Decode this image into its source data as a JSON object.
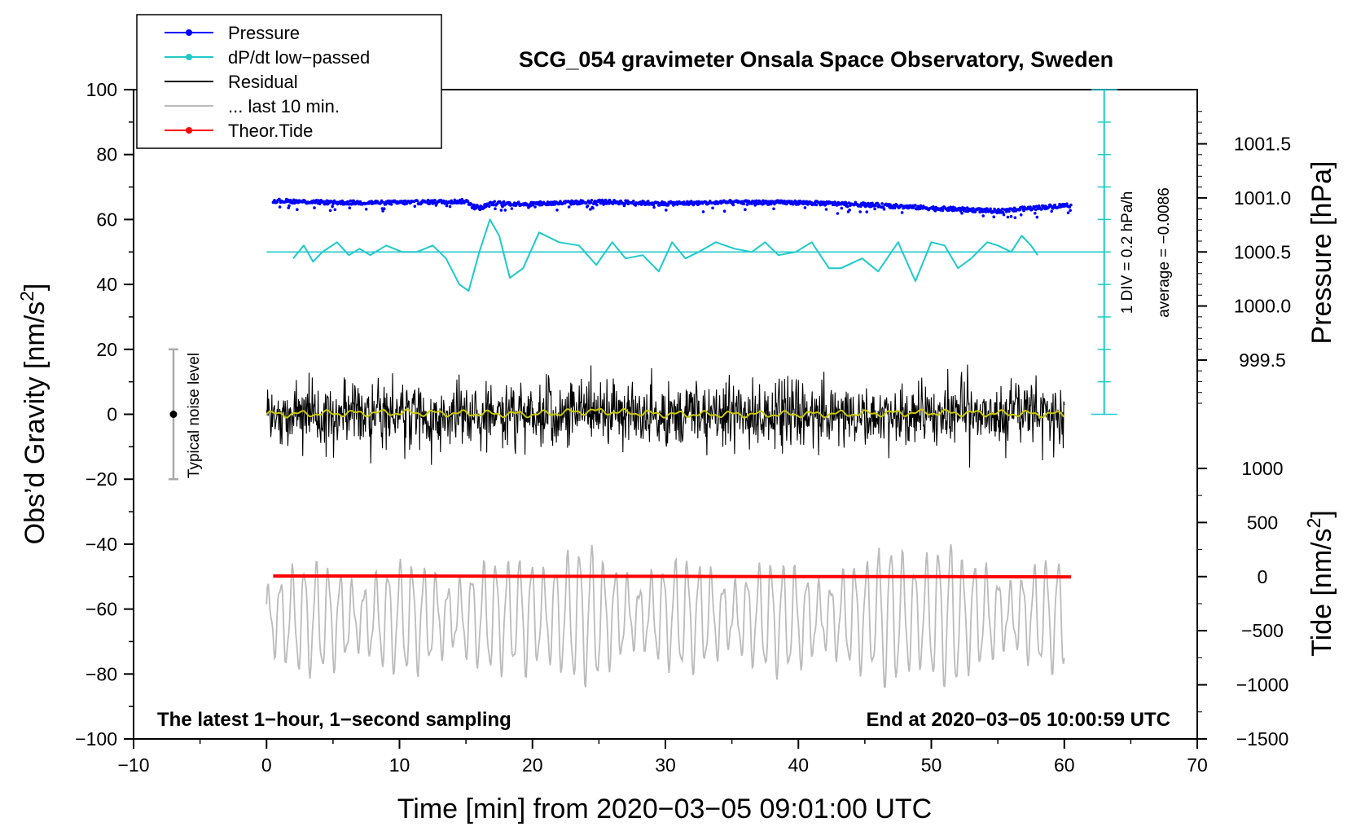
{
  "chart_data": {
    "type": "line",
    "title": "SCG_054 gravimeter Onsala Space Observatory, Sweden",
    "xlabel": "Time [min] from 2020−03−05 09:01:00 UTC",
    "ylabel_left": "Obs’d Gravity [nm/s",
    "ylabel_left_sup": "2",
    "ylabel_left_end": "]",
    "ylabel_right_pressure": "Pressure [hPa]",
    "ylabel_right_tide": "Tide [nm/s",
    "ylabel_right_tide_sup": "2",
    "ylabel_right_tide_end": "]",
    "xlim": [
      -10,
      70
    ],
    "ylim": [
      -100,
      100
    ],
    "x_ticks": [
      "−10",
      "0",
      "10",
      "20",
      "30",
      "40",
      "50",
      "60",
      "70"
    ],
    "x_tick_values": [
      -10,
      0,
      10,
      20,
      30,
      40,
      50,
      60,
      70
    ],
    "y_ticks": [
      "100",
      "80",
      "60",
      "40",
      "20",
      "0",
      "−20",
      "−40",
      "−60",
      "−80",
      "−100"
    ],
    "y_tick_values": [
      100,
      80,
      60,
      40,
      20,
      0,
      -20,
      -40,
      -60,
      -80,
      -100
    ],
    "pressure_axis": {
      "ticks": [
        "1001.5",
        "1001.0",
        "1000.5",
        "1000.0",
        "999.5"
      ],
      "tick_values": [
        1001.5,
        1001.0,
        1000.5,
        1000.0,
        999.5
      ],
      "gravity_at_1000_5": 50,
      "gravity_per_hpa": 33.3
    },
    "tide_axis": {
      "ticks": [
        "1000",
        "500",
        "0",
        "−500",
        "−1000",
        "−1500"
      ],
      "tick_values": [
        1000,
        500,
        0,
        -500,
        -1000,
        -1500
      ],
      "gravity_at_0": -50,
      "gravity_per_unit": 0.03333
    },
    "legend": {
      "placement": "top-left",
      "entries": [
        {
          "label": "Pressure",
          "color": "#0000ff",
          "marker": true
        },
        {
          "label": "dP/dt low−passed",
          "color": "#1fc9c9",
          "marker": true
        },
        {
          "label": "Residual",
          "color": "#000000",
          "marker": false
        },
        {
          "label": "... last 10 min.",
          "color": "#bbbbbb",
          "marker": false
        },
        {
          "label": "Theor.Tide",
          "color": "#ff0000",
          "marker": true
        }
      ]
    },
    "series": [
      {
        "name": "Pressure",
        "color": "#0000ff",
        "x": [
          0.5,
          5,
          10,
          15,
          16,
          17,
          20,
          25,
          30,
          35,
          40,
          45,
          50,
          55,
          60.5
        ],
        "y": [
          65.8,
          65.2,
          65.2,
          65.6,
          63.5,
          65.0,
          64.8,
          65.5,
          64.9,
          65.3,
          65.2,
          64.6,
          63.5,
          62.6,
          64.5
        ]
      },
      {
        "name": "dP/dt low−passed",
        "color": "#1fc9c9",
        "x": [
          2,
          2.8,
          3.5,
          4.2,
          5.3,
          6.2,
          7.0,
          7.8,
          9.0,
          10.2,
          11.3,
          12.5,
          13.5,
          14.5,
          15.2,
          16.0,
          16.8,
          17.5,
          18.3,
          19.3,
          20.5,
          22.0,
          23.5,
          24.8,
          26.0,
          27.0,
          28.3,
          29.5,
          30.5,
          31.5,
          32.5,
          33.8,
          35.2,
          36.5,
          37.5,
          38.5,
          39.8,
          41.0,
          42.3,
          43.2,
          44.8,
          46.0,
          47.5,
          48.8,
          50.0,
          51.0,
          52.0,
          53.0,
          54.2,
          55.0,
          56.0,
          56.8,
          57.5,
          58.0
        ],
        "y": [
          48,
          52,
          47,
          50,
          53,
          49,
          51,
          49,
          52,
          50,
          50,
          52,
          48,
          40,
          38,
          50,
          60,
          55,
          42,
          45,
          56,
          53,
          52,
          46,
          53,
          48,
          49,
          44,
          53,
          48,
          50,
          53,
          51,
          50,
          53,
          49,
          50,
          53,
          45,
          45,
          48,
          44,
          53,
          41,
          53,
          52,
          45,
          48,
          53,
          52,
          50,
          55,
          52,
          49
        ]
      },
      {
        "name": "Residual",
        "color": "#000000",
        "x": [
          0,
          5,
          10,
          15,
          20,
          21,
          24.5,
          30,
          35,
          40,
          45,
          50,
          55,
          58.5,
          60
        ],
        "y": [
          0,
          0,
          0,
          0,
          0,
          0,
          1,
          0,
          0,
          0,
          0,
          0,
          0,
          0,
          0
        ],
        "envelope": 21
      },
      {
        "name": "Residual (smoothed)",
        "color": "#c8c800",
        "x": [
          0,
          10,
          20,
          24.5,
          30,
          40,
          50,
          60
        ],
        "y": [
          0,
          0.5,
          0,
          1,
          0,
          0,
          0.5,
          0
        ]
      },
      {
        "name": "... last 10 min.",
        "color": "#bbbbbb",
        "x": [
          0,
          10,
          20,
          24.5,
          30,
          40,
          48,
          50,
          60
        ],
        "y": [
          -63,
          -63,
          -62,
          -62,
          -62,
          -63,
          -62,
          -62,
          -62
        ],
        "range": [
          -84,
          -40
        ]
      },
      {
        "name": "Theor.Tide",
        "color": "#ff0000",
        "x": [
          0.5,
          10,
          20,
          30,
          40,
          50,
          60.5
        ],
        "y": [
          -49.8,
          -49.8,
          -49.9,
          -49.9,
          -50.0,
          -50.0,
          -50.1
        ]
      }
    ],
    "annotations": {
      "noise_label": "Typical noise level",
      "noise_range": [
        -20,
        20
      ],
      "div_label": "1 DIV = 0.2 hPa/h",
      "average_label": "average = −0.0086",
      "bottom_left": "The latest 1−hour, 1−second sampling",
      "bottom_right": "End at 2020−03−05 10:00:59 UTC"
    }
  }
}
